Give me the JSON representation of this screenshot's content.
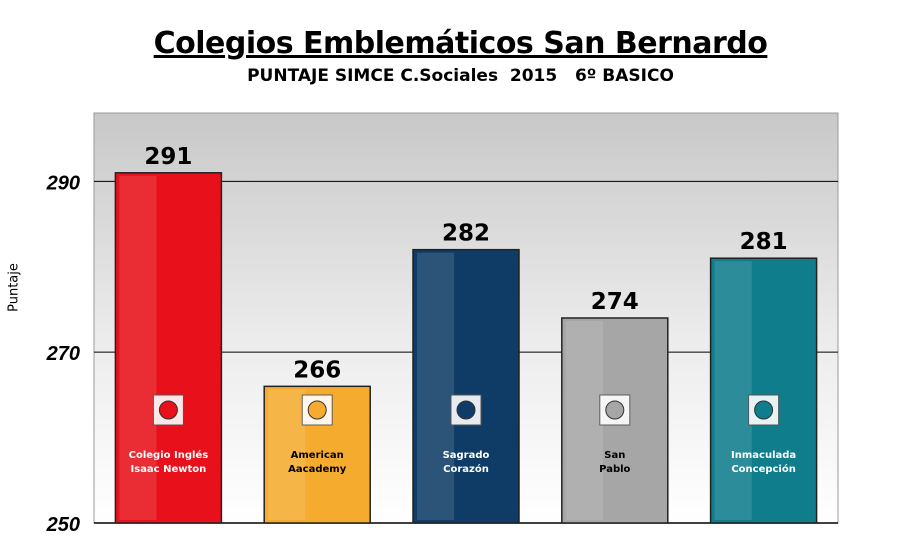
{
  "chart_data": {
    "type": "bar",
    "title": "Colegios Emblemáticos San Bernardo",
    "subtitle": "PUNTAJE SIMCE C.Sociales  2015   6º BASICO",
    "xlabel": "",
    "ylabel": "Puntaje",
    "ylim": [
      250,
      298
    ],
    "yticks": [
      250,
      270,
      290
    ],
    "grid": true,
    "categories": [
      [
        "Colegio Inglés",
        "Isaac Newton"
      ],
      [
        "American",
        "Aacademy"
      ],
      [
        "Sagrado",
        "Corazón"
      ],
      [
        "San",
        "Pablo"
      ],
      [
        "Inmaculada",
        "Concepción"
      ]
    ],
    "values": [
      291,
      266,
      282,
      274,
      281
    ],
    "colors": [
      "#e8101a",
      "#f5ac2e",
      "#0f3c66",
      "#a6a6a6",
      "#107d8c"
    ],
    "label_colors": [
      "#ffffff",
      "#000000",
      "#ffffff",
      "#000000",
      "#ffffff"
    ]
  }
}
